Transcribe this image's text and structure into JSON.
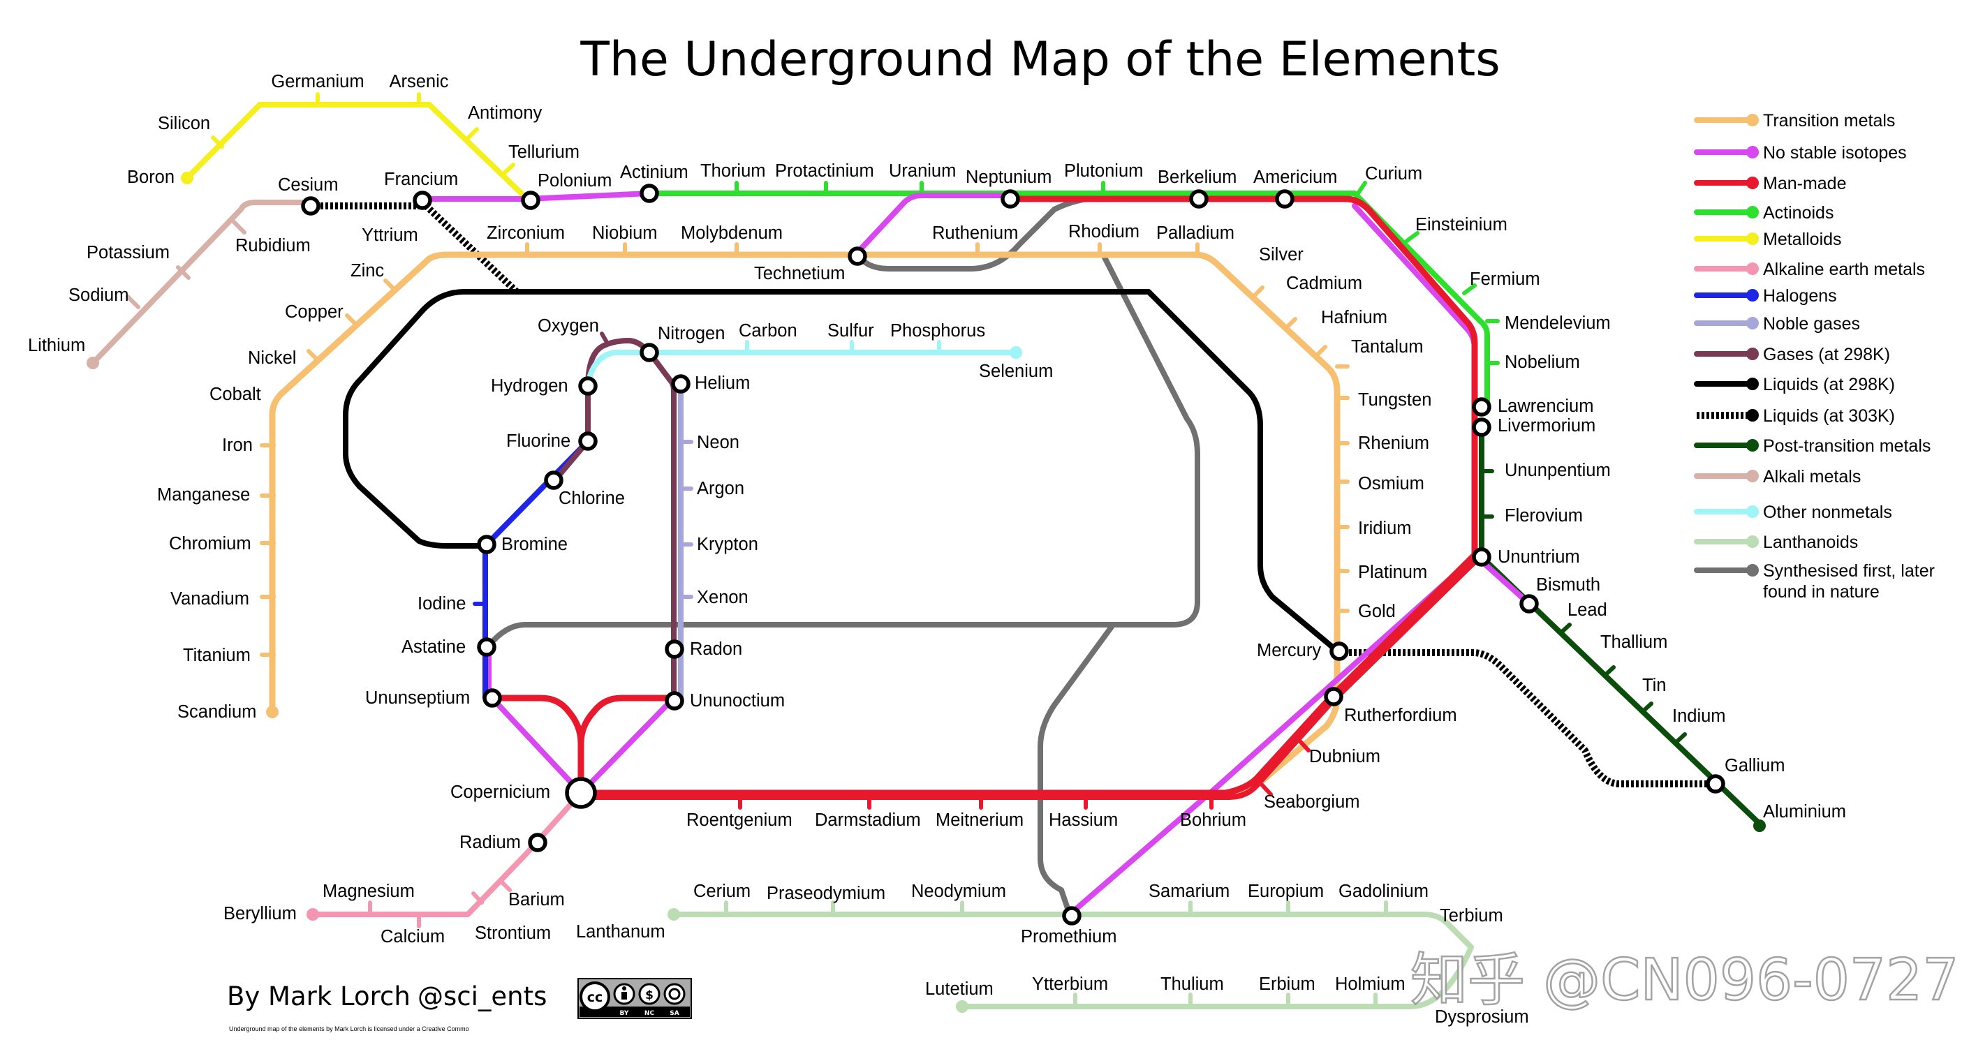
{
  "title": "The Underground Map of the Elements",
  "author": "By Mark Lorch",
  "handle": "@sci_ents",
  "license_text": "Underground map of the elements by Mark Lorch is licensed under a Creative Commo",
  "license_badge": [
    "BY",
    "NC",
    "SA"
  ],
  "watermark": "知乎 @CN096-0727",
  "colors": {
    "transition": "#f7c070",
    "nostable": "#d847f0",
    "manmade": "#e8192c",
    "actinoids": "#2de02d",
    "metalloids": "#f5f01c",
    "alkaline_earth": "#f496b1",
    "halogens": "#1d25e8",
    "noble": "#a6a6da",
    "gases": "#7a3a55",
    "liquids": "#000000",
    "post_transition": "#0b4d0b",
    "alkali": "#d7b0a7",
    "other_nonmetals": "#9ff4f8",
    "lanthanoids": "#bcdcb4",
    "synthesised": "#707070"
  },
  "legend": [
    {
      "label": "Transition metals",
      "color": "#f7c070"
    },
    {
      "label": "No stable isotopes",
      "color": "#d847f0"
    },
    {
      "label": "Man-made",
      "color": "#e8192c"
    },
    {
      "label": "Actinoids",
      "color": "#2de02d"
    },
    {
      "label": "Metalloids",
      "color": "#f5f01c"
    },
    {
      "label": "Alkaline earth metals",
      "color": "#f496b1"
    },
    {
      "label": "Halogens",
      "color": "#1d25e8"
    },
    {
      "label": "Noble gases",
      "color": "#a6a6da"
    },
    {
      "label": "Gases (at 298K)",
      "color": "#7a3a55"
    },
    {
      "label": "Liquids (at 298K)",
      "color": "#000000"
    },
    {
      "label": "Liquids (at 303K)",
      "color": "#000000",
      "dotted": true
    },
    {
      "label": "Post-transition metals",
      "color": "#0b4d0b"
    },
    {
      "label": "Alkali metals",
      "color": "#d7b0a7"
    },
    {
      "label": "Other nonmetals",
      "color": "#9ff4f8"
    },
    {
      "label": "Lanthanoids",
      "color": "#bcdcb4"
    },
    {
      "label": "Synthesised first, later",
      "label2": "found in nature",
      "color": "#707070"
    }
  ],
  "stations": {
    "germanium": "Germanium",
    "arsenic": "Arsenic",
    "antimony": "Antimony",
    "silicon": "Silicon",
    "tellurium": "Tellurium",
    "boron": "Boron",
    "cesium": "Cesium",
    "francium": "Francium",
    "polonium": "Polonium",
    "actinium": "Actinium",
    "thorium": "Thorium",
    "protactinium": "Protactinium",
    "uranium": "Uranium",
    "neptunium": "Neptunium",
    "plutonium": "Plutonium",
    "berkelium": "Berkelium",
    "americium": "Americium",
    "curium": "Curium",
    "einsteinium": "Einsteinium",
    "fermium": "Fermium",
    "mendelevium": "Mendelevium",
    "nobelium": "Nobelium",
    "lawrencium": "Lawrencium",
    "livermorium": "Livermorium",
    "ununpentium": "Ununpentium",
    "flerovium": "Flerovium",
    "ununtrium": "Ununtrium",
    "bismuth": "Bismuth",
    "lead": "Lead",
    "thallium": "Thallium",
    "tin": "Tin",
    "indium": "Indium",
    "gallium": "Gallium",
    "aluminium": "Aluminium",
    "potassium": "Potassium",
    "rubidium": "Rubidium",
    "sodium": "Sodium",
    "lithium": "Lithium",
    "yttrium": "Yttrium",
    "zirconium": "Zirconium",
    "niobium": "Niobium",
    "molybdenum": "Molybdenum",
    "ruthenium": "Ruthenium",
    "rhodium": "Rhodium",
    "palladium": "Palladium",
    "technetium": "Technetium",
    "silver": "Silver",
    "cadmium": "Cadmium",
    "hafnium": "Hafnium",
    "tantalum": "Tantalum",
    "tungsten": "Tungsten",
    "rhenium": "Rhenium",
    "osmium": "Osmium",
    "iridium": "Iridium",
    "platinum": "Platinum",
    "gold": "Gold",
    "mercury": "Mercury",
    "rutherfordium": "Rutherfordium",
    "dubnium": "Dubnium",
    "seaborgium": "Seaborgium",
    "bohrium": "Bohrium",
    "hassium": "Hassium",
    "meitnerium": "Meitnerium",
    "darmstadium": "Darmstadium",
    "roentgenium": "Roentgenium",
    "zinc": "Zinc",
    "copper": "Copper",
    "nickel": "Nickel",
    "cobalt": "Cobalt",
    "iron": "Iron",
    "manganese": "Manganese",
    "chromium": "Chromium",
    "vanadium": "Vanadium",
    "titanium": "Titanium",
    "scandium": "Scandium",
    "oxygen": "Oxygen",
    "nitrogen": "Nitrogen",
    "carbon": "Carbon",
    "sulfur": "Sulfur",
    "phosphorus": "Phosphorus",
    "selenium": "Selenium",
    "hydrogen": "Hydrogen",
    "helium": "Helium",
    "fluorine": "Fluorine",
    "neon": "Neon",
    "chlorine": "Chlorine",
    "argon": "Argon",
    "bromine": "Bromine",
    "krypton": "Krypton",
    "xenon": "Xenon",
    "iodine": "Iodine",
    "astatine": "Astatine",
    "radon": "Radon",
    "ununseptium": "Ununseptium",
    "ununoctium": "Ununoctium",
    "copernicium": "Copernicium",
    "radium": "Radium",
    "magnesium": "Magnesium",
    "barium": "Barium",
    "beryllium": "Beryllium",
    "calcium": "Calcium",
    "strontium": "Strontium",
    "lanthanum": "Lanthanum",
    "cerium": "Cerium",
    "praseodymium": "Praseodymium",
    "neodymium": "Neodymium",
    "promethium": "Promethium",
    "samarium": "Samarium",
    "europium": "Europium",
    "gadolinium": "Gadolinium",
    "terbium": "Terbium",
    "lutetium": "Lutetium",
    "ytterbium": "Ytterbium",
    "thulium": "Thulium",
    "erbium": "Erbium",
    "holmium": "Holmium",
    "dysprosium": "Dysprosium"
  }
}
